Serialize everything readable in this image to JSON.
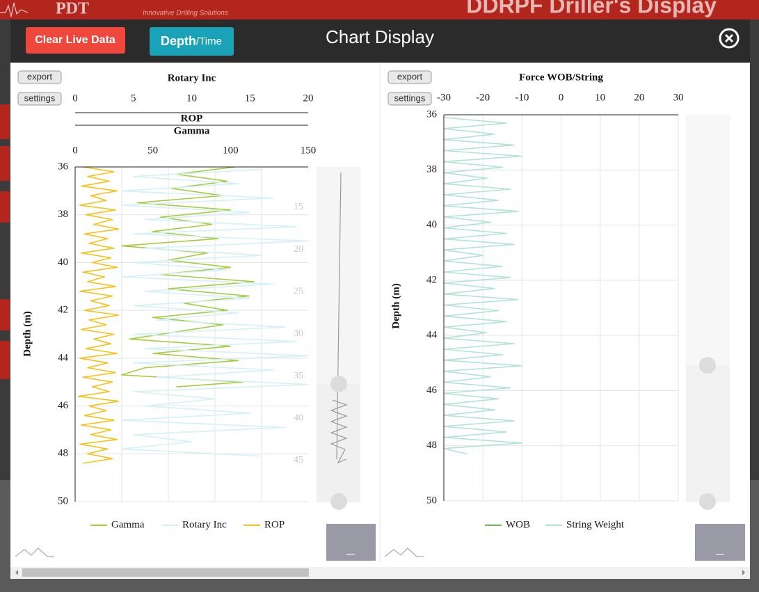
{
  "ui": {
    "logo": "PDT",
    "tagline": "Innovative Drilling Solutions",
    "app_title": "DDRPF Driller's Display",
    "modal_title": "Chart Display",
    "clear_button": "Clear Live Data",
    "mode_button_main": "Depth",
    "mode_button_alt": "/Time",
    "panel_buttons": [
      "export",
      "settings"
    ]
  },
  "chart_data": [
    {
      "type": "line",
      "axes": [
        {
          "title": "Rotary Inc",
          "xlim": [
            0,
            20
          ],
          "xticks": [
            0,
            5,
            10,
            15,
            20
          ]
        },
        {
          "title": "ROP",
          "xlim": [
            0,
            150
          ],
          "grid_x": [
            30,
            60,
            90,
            120
          ]
        },
        {
          "title": "Gamma",
          "xlim": [
            0,
            150
          ],
          "xticks": [
            0,
            50,
            100,
            150
          ]
        }
      ],
      "ylabel": "Depth (m)",
      "ylim": [
        36,
        50
      ],
      "yticks": [
        36,
        38,
        40,
        42,
        44,
        46,
        48,
        50
      ],
      "y_inverted": true,
      "grid": true,
      "navigator_ticks": [
        15,
        20,
        25,
        30,
        35,
        40,
        45
      ],
      "series": [
        {
          "name": "Gamma",
          "color": "#a6cc3f",
          "axis": 2,
          "depth": [
            36,
            36.3,
            36.6,
            36.9,
            37.2,
            37.5,
            37.8,
            38.1,
            38.4,
            38.7,
            39,
            39.3,
            39.6,
            39.9,
            40.2,
            40.5,
            40.8,
            41.1,
            41.4,
            41.7,
            42,
            42.3,
            42.6,
            42.9,
            43.2,
            43.5,
            43.8,
            44.1,
            44.4,
            44.7,
            45,
            45.2
          ],
          "values": [
            103,
            65,
            98,
            62,
            95,
            40,
            100,
            55,
            88,
            50,
            92,
            30,
            85,
            60,
            100,
            55,
            115,
            60,
            112,
            70,
            98,
            50,
            95,
            65,
            35,
            100,
            50,
            105,
            45,
            30,
            108,
            65
          ]
        },
        {
          "name": "Rotary Inc",
          "color": "#d3f1f6",
          "axis": 0,
          "depth": [
            36.1,
            36.4,
            36.7,
            37,
            37.3,
            37.6,
            37.9,
            38.2,
            38.5,
            38.8,
            39.1,
            39.4,
            39.7,
            40,
            40.3,
            40.6,
            40.9,
            41.2,
            41.5,
            41.8,
            42.1,
            42.4,
            42.7,
            43,
            43.3,
            43.6,
            43.9,
            44.2,
            44.5,
            44.8,
            45.1,
            45.4,
            45.7,
            46,
            46.3,
            46.6,
            46.9,
            47.2,
            47.5,
            47.8,
            48.1
          ],
          "values": [
            16,
            5,
            14,
            4,
            17,
            4,
            15,
            6,
            19,
            5,
            20,
            6,
            16,
            5,
            13,
            4,
            17,
            6,
            15,
            5,
            14,
            7,
            18,
            5,
            19,
            6,
            20,
            5,
            17,
            7,
            20,
            5,
            12,
            6,
            15,
            4,
            18,
            5,
            10,
            4,
            16
          ]
        },
        {
          "name": "ROP",
          "color": "#f5c21b",
          "axis": 1,
          "depth": [
            36,
            36.2,
            36.4,
            36.6,
            36.8,
            37,
            37.2,
            37.4,
            37.6,
            37.8,
            38,
            38.2,
            38.4,
            38.6,
            38.8,
            39,
            39.2,
            39.4,
            39.6,
            39.8,
            40,
            40.2,
            40.4,
            40.6,
            40.8,
            41,
            41.2,
            41.4,
            41.6,
            41.8,
            42,
            42.2,
            42.4,
            42.6,
            42.8,
            43,
            43.2,
            43.4,
            43.6,
            43.8,
            44,
            44.2,
            44.4,
            44.6,
            44.8,
            45,
            45.2,
            45.4,
            45.6,
            45.8,
            46,
            46.2,
            46.4,
            46.6,
            46.8,
            47,
            47.2,
            47.4,
            47.6,
            47.8,
            48,
            48.2,
            48.4
          ],
          "values": [
            5,
            25,
            8,
            22,
            4,
            27,
            10,
            20,
            3,
            26,
            7,
            24,
            12,
            28,
            6,
            21,
            9,
            25,
            4,
            23,
            11,
            27,
            5,
            19,
            8,
            26,
            3,
            24,
            10,
            22,
            6,
            28,
            9,
            20,
            4,
            25,
            12,
            23,
            7,
            27,
            3,
            21,
            8,
            26,
            5,
            24,
            11,
            22,
            2,
            28,
            9,
            20,
            6,
            25,
            4,
            23,
            10,
            27,
            3,
            21,
            8,
            24,
            5
          ]
        }
      ]
    },
    {
      "type": "line",
      "axes": [
        {
          "title": "Force WOB/String",
          "xlim": [
            -30,
            30
          ],
          "xticks": [
            -30,
            -20,
            -10,
            0,
            10,
            20,
            30
          ]
        }
      ],
      "ylabel": "Depth (m)",
      "ylim": [
        36,
        50
      ],
      "yticks": [
        36,
        38,
        40,
        42,
        44,
        46,
        48,
        50
      ],
      "y_inverted": true,
      "grid": true,
      "series": [
        {
          "name": "WOB",
          "color": "#6fb55a",
          "axis": 0,
          "depth": [],
          "values": []
        },
        {
          "name": "String Weight",
          "color": "#b3e2d8",
          "axis": 0,
          "depth": [
            36.1,
            36.3,
            36.5,
            36.7,
            36.9,
            37.1,
            37.3,
            37.5,
            37.7,
            37.9,
            38.1,
            38.3,
            38.5,
            38.7,
            38.9,
            39.1,
            39.3,
            39.5,
            39.7,
            39.9,
            40.1,
            40.3,
            40.5,
            40.7,
            40.9,
            41.1,
            41.3,
            41.5,
            41.7,
            41.9,
            42.1,
            42.3,
            42.5,
            42.7,
            42.9,
            43.1,
            43.3,
            43.5,
            43.7,
            43.9,
            44.1,
            44.3,
            44.5,
            44.7,
            44.9,
            45.1,
            45.3,
            45.5,
            45.7,
            45.9,
            46.1,
            46.3,
            46.5,
            46.7,
            46.9,
            47.1,
            47.3,
            47.5,
            47.7,
            47.9,
            48.1,
            48.3
          ],
          "values": [
            -30,
            -14,
            -30,
            -17,
            -30,
            -12,
            -30,
            -10,
            -30,
            -15,
            -30,
            -19,
            -30,
            -13,
            -30,
            -16,
            -30,
            -11,
            -30,
            -18,
            -30,
            -14,
            -30,
            -12,
            -30,
            -20,
            -30,
            -15,
            -30,
            -13,
            -30,
            -17,
            -30,
            -11,
            -30,
            -16,
            -30,
            -14,
            -30,
            -19,
            -30,
            -12,
            -30,
            -15,
            -30,
            -10,
            -30,
            -18,
            -30,
            -13,
            -30,
            -16,
            -30,
            -17,
            -30,
            -12,
            -30,
            -14,
            -30,
            -10,
            -30,
            -24
          ]
        }
      ]
    }
  ]
}
